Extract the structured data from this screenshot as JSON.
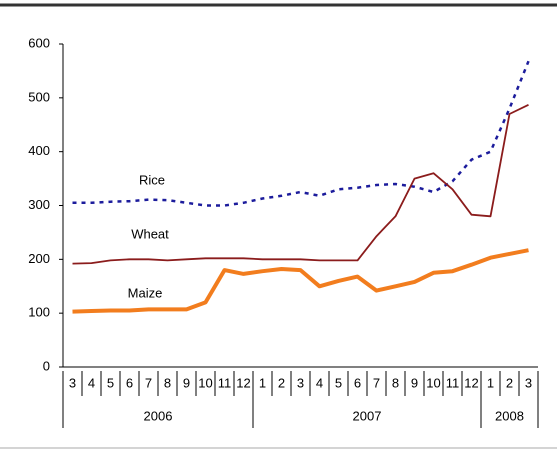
{
  "chart_data": {
    "type": "line",
    "category_groups": [
      {
        "label": "2006",
        "categories": [
          "3",
          "4",
          "5",
          "6",
          "7",
          "8",
          "9",
          "10",
          "11",
          "12"
        ]
      },
      {
        "label": "2007",
        "categories": [
          "1",
          "2",
          "3",
          "4",
          "5",
          "6",
          "7",
          "8",
          "9",
          "10",
          "11",
          "12"
        ]
      },
      {
        "label": "2008",
        "categories": [
          "1",
          "2",
          "3"
        ]
      }
    ],
    "series": [
      {
        "name": "Rice",
        "color": "#1c1c9c",
        "style": "dotted",
        "values": [
          305,
          305,
          307,
          308,
          311,
          310,
          305,
          300,
          300,
          305,
          313,
          318,
          325,
          318,
          330,
          333,
          338,
          340,
          335,
          325,
          345,
          385,
          400,
          480,
          568
        ]
      },
      {
        "name": "Wheat",
        "color": "#8b1c1c",
        "style": "solid",
        "values": [
          192,
          193,
          198,
          200,
          200,
          198,
          200,
          202,
          202,
          202,
          200,
          200,
          200,
          198,
          198,
          198,
          243,
          280,
          350,
          360,
          330,
          283,
          280,
          470,
          487
        ]
      },
      {
        "name": "Maize",
        "color": "#f27d1e",
        "style": "thick",
        "values": [
          103,
          104,
          105,
          105,
          107,
          107,
          107,
          120,
          180,
          173,
          178,
          182,
          180,
          150,
          160,
          168,
          142,
          150,
          158,
          175,
          178,
          190,
          203,
          210,
          217
        ]
      }
    ],
    "annotations": [
      {
        "text": "Rice",
        "series": 0
      },
      {
        "text": "Wheat",
        "series": 1
      },
      {
        "text": "Maize",
        "series": 2
      }
    ],
    "ylim": [
      0,
      600
    ],
    "yticks": [
      0,
      100,
      200,
      300,
      400,
      500,
      600
    ],
    "grid": false
  }
}
